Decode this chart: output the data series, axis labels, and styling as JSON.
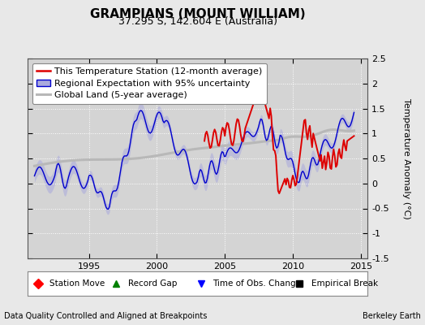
{
  "title": "GRAMPIANS (MOUNT WILLIAM)",
  "subtitle": "37.295 S, 142.604 E (Australia)",
  "ylabel": "Temperature Anomaly (°C)",
  "footer_left": "Data Quality Controlled and Aligned at Breakpoints",
  "footer_right": "Berkeley Earth",
  "xlim": [
    1990.5,
    2015.5
  ],
  "ylim": [
    -1.5,
    2.5
  ],
  "yticks": [
    -1.5,
    -1.0,
    -0.5,
    0.0,
    0.5,
    1.0,
    1.5,
    2.0,
    2.5
  ],
  "xticks": [
    1995,
    2000,
    2005,
    2010,
    2015
  ],
  "bg_color": "#e8e8e8",
  "plot_bg_color": "#d4d4d4",
  "grid_color": "#ffffff",
  "red_color": "#dd0000",
  "blue_color": "#0000cc",
  "blue_fill_color": "#aaaadd",
  "gray_color": "#b8b8b8",
  "title_fontsize": 11,
  "subtitle_fontsize": 9,
  "legend_fontsize": 8,
  "tick_fontsize": 8,
  "ylabel_fontsize": 8
}
